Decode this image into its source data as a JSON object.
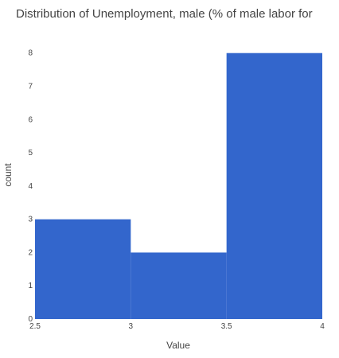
{
  "chart_data": {
    "type": "bar",
    "title": "Distribution of Unemployment, male (% of male labor for",
    "xlabel": "Value",
    "ylabel": "count",
    "bins": [
      {
        "x0": 2.5,
        "x1": 3.0,
        "count": 3
      },
      {
        "x0": 3.0,
        "x1": 3.5,
        "count": 2
      },
      {
        "x0": 3.5,
        "x1": 4.0,
        "count": 8
      }
    ],
    "xlim": [
      2.5,
      4
    ],
    "ylim": [
      0,
      8.4
    ],
    "x_ticks": [
      {
        "value": 2.5,
        "label": "2.5"
      },
      {
        "value": 3,
        "label": "3"
      },
      {
        "value": 3.5,
        "label": "3.5"
      },
      {
        "value": 4,
        "label": "4"
      }
    ],
    "y_ticks": [
      {
        "value": 0,
        "label": "0"
      },
      {
        "value": 1,
        "label": "1"
      },
      {
        "value": 2,
        "label": "2"
      },
      {
        "value": 3,
        "label": "3"
      },
      {
        "value": 4,
        "label": "4"
      },
      {
        "value": 5,
        "label": "5"
      },
      {
        "value": 6,
        "label": "6"
      },
      {
        "value": 7,
        "label": "7"
      },
      {
        "value": 8,
        "label": "8"
      }
    ],
    "grid": false,
    "bar_color": "#3366cc"
  }
}
